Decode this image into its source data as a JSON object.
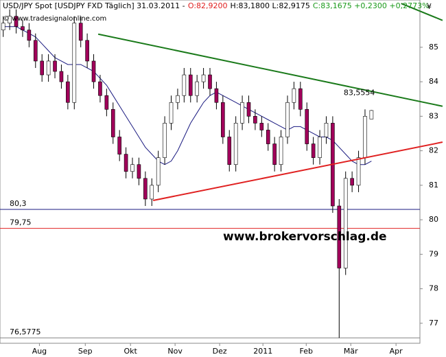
{
  "chart_data": {
    "type": "candlestick",
    "header": {
      "instrument": "USD/JPY Spot [USDJPY FXD  Täglich] 31.03.2011 -",
      "open": "O:82,9200",
      "high_low": "H:83,1800 L:82,9175",
      "close_change": "C:83,1675 +0,2300 +0,2773%",
      "copyright": "© www.tradesignalonline.com",
      "currency": "¥"
    },
    "watermark": "www.brokervorschlag.de",
    "open": [
      85.5,
      85.7,
      85.9,
      85.6,
      85.5,
      85.2,
      84.6,
      84.2,
      84.6,
      84.3,
      84.0,
      83.4,
      85.7,
      85.2,
      84.6,
      84.0,
      83.6,
      83.2,
      82.4,
      81.9,
      81.4,
      81.6,
      81.2,
      80.6,
      81.0,
      81.8,
      82.8,
      83.4,
      83.6,
      84.2,
      83.6,
      84.0,
      84.2,
      83.8,
      83.4,
      82.4,
      81.6,
      82.8,
      83.4,
      83.0,
      82.8,
      82.6,
      82.2,
      81.6,
      82.4,
      83.4,
      83.8,
      83.2,
      82.2,
      81.8,
      82.4,
      82.8,
      80.4,
      78.6,
      81.2,
      81.0,
      81.8,
      82.92
    ],
    "high": [
      85.9,
      86.1,
      86.1,
      85.8,
      85.7,
      85.4,
      84.8,
      84.8,
      84.8,
      84.5,
      84.2,
      85.9,
      85.9,
      85.4,
      84.8,
      84.2,
      83.8,
      83.4,
      82.6,
      82.1,
      81.8,
      81.8,
      81.4,
      81.2,
      82.0,
      83.0,
      83.6,
      83.8,
      84.4,
      84.4,
      84.2,
      84.4,
      84.4,
      84.0,
      83.6,
      82.6,
      83.0,
      83.6,
      83.6,
      83.2,
      83.0,
      82.8,
      82.4,
      82.6,
      83.6,
      84.0,
      84.0,
      83.4,
      82.4,
      82.6,
      83.0,
      83.0,
      80.6,
      81.4,
      81.4,
      82.0,
      83.2,
      83.18
    ],
    "low": [
      85.3,
      85.5,
      85.4,
      85.3,
      85.0,
      84.4,
      84.0,
      84.0,
      84.1,
      83.8,
      83.2,
      83.2,
      85.0,
      84.4,
      83.8,
      83.4,
      83.0,
      82.2,
      81.7,
      81.2,
      81.2,
      81.0,
      80.4,
      80.4,
      80.8,
      81.6,
      82.6,
      83.2,
      83.4,
      83.4,
      83.4,
      83.8,
      83.6,
      83.2,
      82.2,
      81.4,
      81.4,
      82.6,
      82.8,
      82.6,
      82.4,
      82.0,
      81.4,
      81.4,
      82.2,
      83.2,
      83.0,
      82.0,
      81.6,
      81.6,
      82.2,
      80.2,
      76.5775,
      78.4,
      80.8,
      80.8,
      81.6,
      82.9175
    ],
    "close": [
      85.7,
      85.9,
      85.6,
      85.5,
      85.2,
      84.6,
      84.2,
      84.6,
      84.3,
      84.0,
      83.4,
      85.7,
      85.2,
      84.6,
      84.0,
      83.6,
      83.2,
      82.4,
      81.9,
      81.4,
      81.6,
      81.2,
      80.6,
      81.0,
      81.8,
      82.8,
      83.4,
      83.6,
      84.2,
      83.6,
      84.0,
      84.2,
      83.8,
      83.4,
      82.4,
      81.6,
      82.8,
      83.4,
      83.0,
      82.8,
      82.6,
      82.2,
      81.6,
      82.4,
      83.4,
      83.8,
      83.2,
      82.2,
      81.8,
      82.4,
      82.8,
      80.4,
      78.6,
      81.2,
      81.0,
      81.8,
      83.0,
      83.1675
    ],
    "moving_average": {
      "color": "#1a1a80",
      "values": [
        85.6,
        85.6,
        85.6,
        85.5,
        85.4,
        85.3,
        85.1,
        84.9,
        84.7,
        84.6,
        84.5,
        84.5,
        84.5,
        84.4,
        84.3,
        84.1,
        83.9,
        83.6,
        83.3,
        83.0,
        82.7,
        82.4,
        82.1,
        81.9,
        81.7,
        81.6,
        81.7,
        82.0,
        82.4,
        82.8,
        83.1,
        83.4,
        83.6,
        83.7,
        83.6,
        83.5,
        83.4,
        83.3,
        83.2,
        83.1,
        83.0,
        82.9,
        82.8,
        82.7,
        82.6,
        82.7,
        82.7,
        82.6,
        82.5,
        82.4,
        82.4,
        82.3,
        82.1,
        81.9,
        81.7,
        81.6,
        81.6,
        81.7
      ]
    },
    "up_color": "#ffffff",
    "down_color": "#a0005a",
    "xlim": [
      -0.5,
      64.5
    ],
    "xticks": [
      {
        "value": 5.6,
        "label": "Aug"
      },
      {
        "value": 12.7,
        "label": "Sep"
      },
      {
        "value": 19.7,
        "label": "Okt"
      },
      {
        "value": 26.6,
        "label": "Nov"
      },
      {
        "value": 33.5,
        "label": "Dez"
      },
      {
        "value": 40.2,
        "label": "2011"
      },
      {
        "value": 46.9,
        "label": "Feb"
      },
      {
        "value": 53.8,
        "label": "Mär"
      },
      {
        "value": 60.8,
        "label": "Apr"
      }
    ],
    "ylim": [
      76.42,
      86.37
    ],
    "yticks": [
      77,
      78,
      79,
      80,
      81,
      82,
      83,
      84,
      85
    ],
    "levels": [
      {
        "value": 80.3,
        "label": "80,3",
        "color": "#1a1a80"
      },
      {
        "value": 79.75,
        "label": "79,75",
        "color": "#e02020"
      },
      {
        "value": 76.5775,
        "label": "76,5775",
        "color": "#808080"
      }
    ],
    "trendlines": [
      {
        "color": "#1a7a1a",
        "from": [
          14.7,
          85.38
        ],
        "to": [
          68,
          83.29
        ]
      },
      {
        "color": "#e02020",
        "from": [
          23.2,
          80.56
        ],
        "to": [
          68,
          82.25
        ]
      },
      {
        "color": "#1a7a1a",
        "from": [
          61.6,
          86.27
        ],
        "to": [
          68,
          85.78
        ]
      }
    ],
    "annotation": {
      "text": "83,5554",
      "x": 52.7,
      "y": 83.67
    }
  }
}
